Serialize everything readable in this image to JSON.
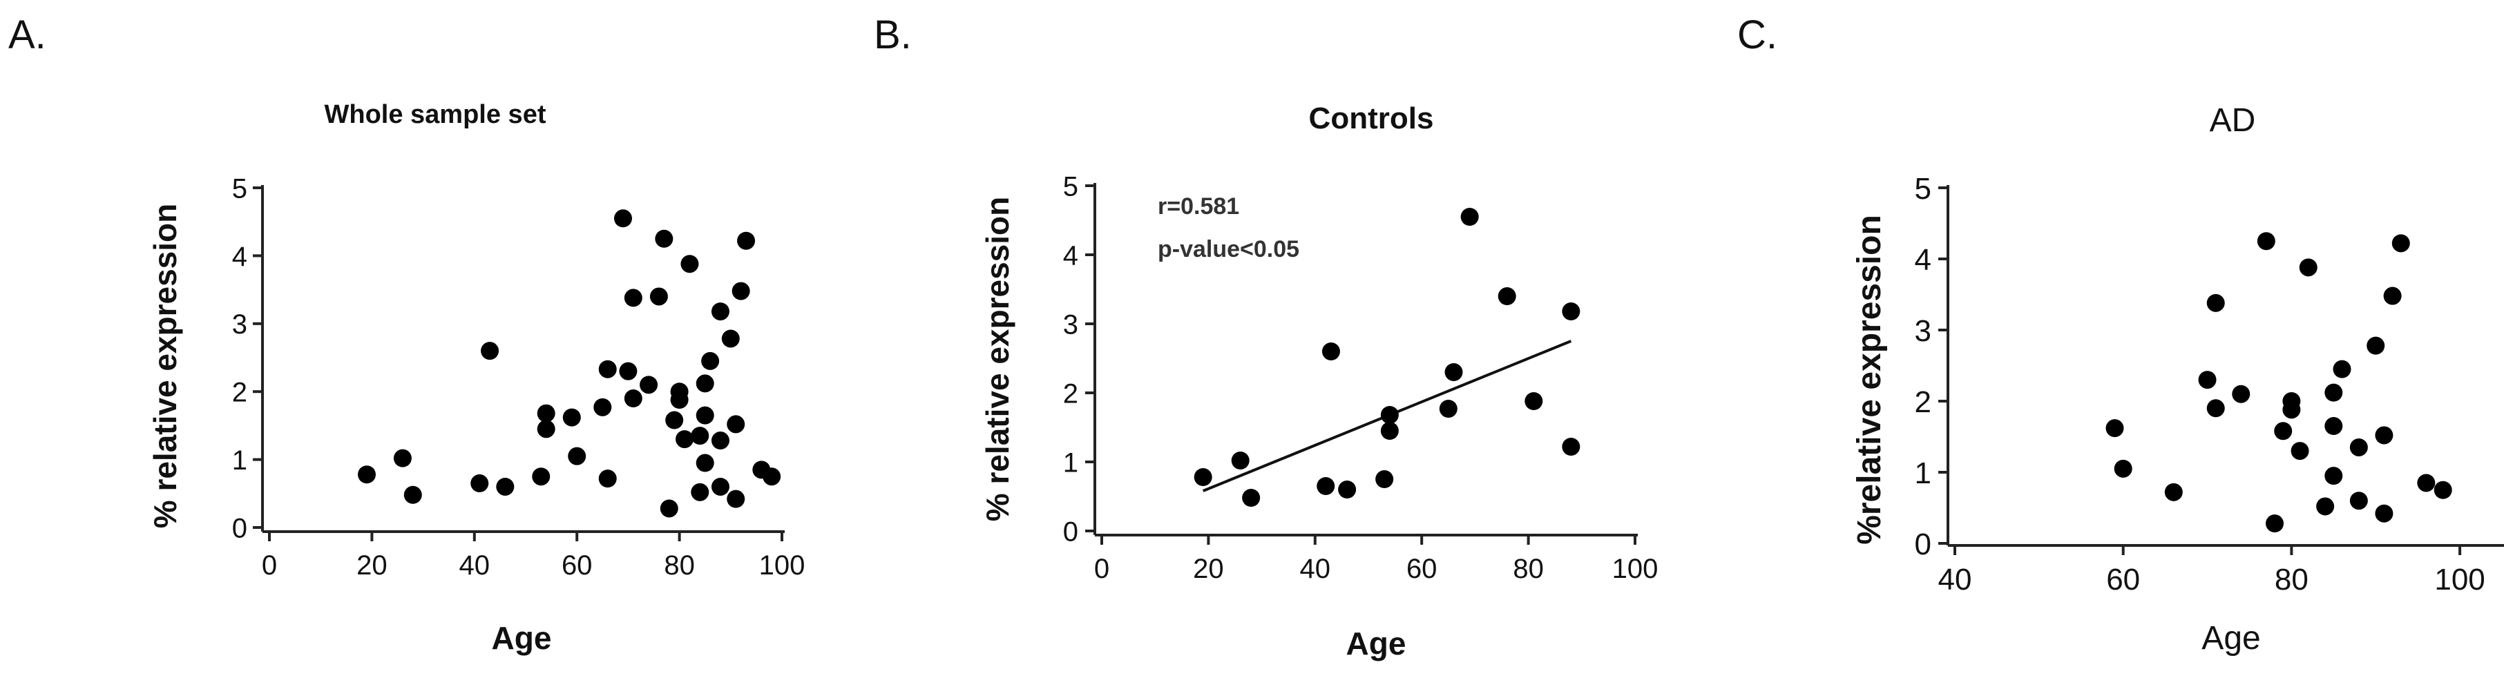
{
  "chart_data": [
    {
      "type": "scatter",
      "panel_label": "A.",
      "title": "Whole sample set",
      "xlabel": "Age",
      "ylabel": "% relative expression",
      "xlim": [
        0,
        100
      ],
      "ylim": [
        0,
        5
      ],
      "xticks": [
        "0",
        "20",
        "40",
        "60",
        "80",
        "100"
      ],
      "yticks": [
        "0",
        "1",
        "2",
        "3",
        "4",
        "5"
      ],
      "grid": false,
      "points": [
        [
          19,
          0.78
        ],
        [
          26,
          1.02
        ],
        [
          28,
          0.48
        ],
        [
          41,
          0.65
        ],
        [
          43,
          2.6
        ],
        [
          46,
          0.6
        ],
        [
          53,
          0.75
        ],
        [
          54,
          1.68
        ],
        [
          54,
          1.45
        ],
        [
          59,
          1.62
        ],
        [
          60,
          1.05
        ],
        [
          65,
          1.77
        ],
        [
          66,
          2.33
        ],
        [
          66,
          0.72
        ],
        [
          69,
          4.55
        ],
        [
          70,
          2.3
        ],
        [
          71,
          3.38
        ],
        [
          71,
          1.9
        ],
        [
          74,
          2.1
        ],
        [
          76,
          3.4
        ],
        [
          77,
          4.25
        ],
        [
          78,
          0.28
        ],
        [
          79,
          1.58
        ],
        [
          80,
          2.0
        ],
        [
          80,
          1.88
        ],
        [
          81,
          1.3
        ],
        [
          82,
          3.88
        ],
        [
          84,
          0.52
        ],
        [
          84,
          1.35
        ],
        [
          85,
          2.12
        ],
        [
          85,
          1.65
        ],
        [
          85,
          0.95
        ],
        [
          86,
          2.45
        ],
        [
          88,
          3.18
        ],
        [
          88,
          1.28
        ],
        [
          88,
          0.6
        ],
        [
          90,
          2.78
        ],
        [
          91,
          1.52
        ],
        [
          91,
          0.42
        ],
        [
          92,
          3.48
        ],
        [
          93,
          4.22
        ],
        [
          96,
          0.85
        ],
        [
          98,
          0.75
        ]
      ]
    },
    {
      "type": "scatter",
      "panel_label": "B.",
      "title": "Controls",
      "xlabel": "Age",
      "ylabel": "% relative expression",
      "xlim": [
        0,
        100
      ],
      "ylim": [
        0,
        5
      ],
      "xticks": [
        "0",
        "20",
        "40",
        "60",
        "80",
        "100"
      ],
      "yticks": [
        "0",
        "1",
        "2",
        "3",
        "4",
        "5"
      ],
      "grid": false,
      "annotations": [
        "r=0.581",
        "p-value<0.05"
      ],
      "regression_line": {
        "x": [
          19,
          88
        ],
        "y": [
          0.58,
          2.75
        ]
      },
      "points": [
        [
          19,
          0.78
        ],
        [
          26,
          1.02
        ],
        [
          28,
          0.48
        ],
        [
          42,
          0.65
        ],
        [
          43,
          2.6
        ],
        [
          46,
          0.6
        ],
        [
          53,
          0.75
        ],
        [
          54,
          1.68
        ],
        [
          54,
          1.45
        ],
        [
          65,
          1.77
        ],
        [
          66,
          2.3
        ],
        [
          69,
          4.55
        ],
        [
          76,
          3.4
        ],
        [
          81,
          1.88
        ],
        [
          88,
          3.18
        ],
        [
          88,
          1.22
        ]
      ]
    },
    {
      "type": "scatter",
      "panel_label": "C.",
      "title": "AD",
      "xlabel": "Age",
      "ylabel": "%relative expression",
      "xlim": [
        40,
        105
      ],
      "ylim": [
        0,
        5
      ],
      "xticks": [
        "40",
        "60",
        "80",
        "100"
      ],
      "yticks": [
        "0",
        "1",
        "2",
        "3",
        "4",
        "5"
      ],
      "grid": false,
      "points": [
        [
          59,
          1.62
        ],
        [
          60,
          1.05
        ],
        [
          66,
          0.72
        ],
        [
          70,
          2.3
        ],
        [
          71,
          3.38
        ],
        [
          71,
          1.9
        ],
        [
          74,
          2.1
        ],
        [
          77,
          4.25
        ],
        [
          78,
          0.28
        ],
        [
          79,
          1.58
        ],
        [
          80,
          2.0
        ],
        [
          80,
          1.88
        ],
        [
          81,
          1.3
        ],
        [
          82,
          3.88
        ],
        [
          84,
          0.52
        ],
        [
          85,
          2.12
        ],
        [
          85,
          1.65
        ],
        [
          85,
          0.95
        ],
        [
          86,
          2.45
        ],
        [
          88,
          1.35
        ],
        [
          88,
          0.6
        ],
        [
          90,
          2.78
        ],
        [
          91,
          1.52
        ],
        [
          91,
          0.42
        ],
        [
          92,
          3.48
        ],
        [
          93,
          4.22
        ],
        [
          96,
          0.85
        ],
        [
          98,
          0.75
        ]
      ]
    }
  ]
}
